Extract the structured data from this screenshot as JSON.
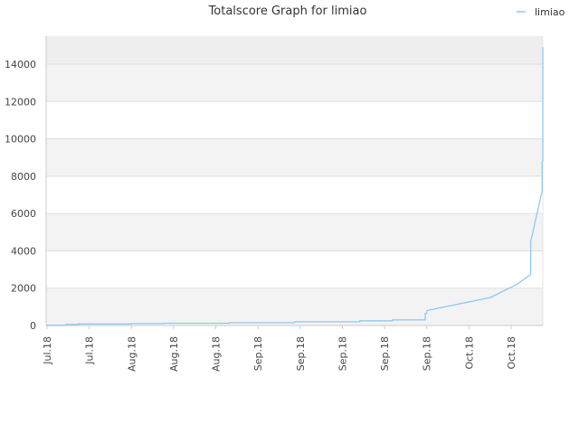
{
  "chart_data": {
    "type": "line",
    "title": "Totalscore Graph for limiao",
    "xlabel": "",
    "ylabel": "",
    "ylim": [
      0,
      15500
    ],
    "yticks": [
      0,
      2000,
      4000,
      6000,
      8000,
      10000,
      12000,
      14000
    ],
    "xtick_labels": [
      "Jul.18",
      "Jul.18",
      "Aug.18",
      "Aug.18",
      "Aug.18",
      "Sep.18",
      "Sep.18",
      "Sep.18",
      "Sep.18",
      "Sep.18",
      "Oct.18",
      "Oct.18"
    ],
    "legend": {
      "position": "top-right",
      "entries": [
        "limiao"
      ]
    },
    "grid": true,
    "series": [
      {
        "name": "limiao",
        "color": "#90c8f0",
        "x": [
          0,
          0.6,
          0.6,
          1.0,
          1.0,
          2.6,
          2.6,
          3.6,
          3.6,
          5.6,
          5.6,
          7.6,
          7.6,
          9.6,
          9.6,
          10.6,
          10.6,
          11.6,
          11.6,
          11.6,
          11.6,
          11.65,
          11.65,
          12.2,
          13.6,
          14.4,
          14.8,
          14.83,
          14.83,
          14.87,
          15.15,
          15.18,
          15.18,
          15.2,
          15.2
        ],
        "y": [
          20,
          20,
          60,
          60,
          80,
          80,
          100,
          100,
          120,
          120,
          150,
          150,
          200,
          200,
          250,
          250,
          300,
          300,
          320,
          600,
          650,
          650,
          800,
          1000,
          1500,
          2200,
          2700,
          2750,
          4500,
          4800,
          7000,
          7200,
          8800,
          8800,
          14900
        ]
      }
    ]
  }
}
